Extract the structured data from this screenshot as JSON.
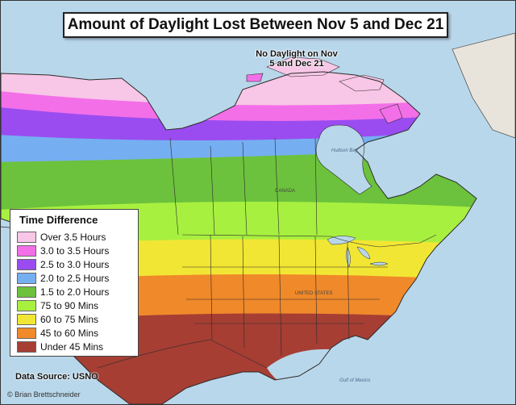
{
  "title": "Amount of Daylight Lost Between Nov 5 and Dec 21",
  "polar_note": "No Daylight on Nov 5 and Dec 21",
  "legend": {
    "title": "Time Difference",
    "items": [
      {
        "label": "Over 3.5 Hours",
        "color": "#f8c6e6"
      },
      {
        "label": "3.0 to 3.5 Hours",
        "color": "#f36fe8"
      },
      {
        "label": "2.5 to 3.0 Hours",
        "color": "#9a4cf0"
      },
      {
        "label": "2.0 to 2.5 Hours",
        "color": "#76aef2"
      },
      {
        "label": "1.5 to 2.0 Hours",
        "color": "#6cc23c"
      },
      {
        "label": "75 to 90 Mins",
        "color": "#a8f040"
      },
      {
        "label": "60 to 75 Mins",
        "color": "#f2e634"
      },
      {
        "label": "45 to 60 Mins",
        "color": "#f0892a"
      },
      {
        "label": "Under 45 Mins",
        "color": "#a63e34"
      }
    ]
  },
  "source": "Data Source: USNO",
  "credit": "© Brian Brettschneider",
  "map_labels": {
    "canada": "CANADA",
    "united_states": "UNITED STATES",
    "gulf_of_mexico": "Gulf of Mexico",
    "hudson_bay": "Hudson Bay"
  },
  "colors": {
    "ocean": "#b9d7ea",
    "boundary": "#2b2b2b"
  }
}
